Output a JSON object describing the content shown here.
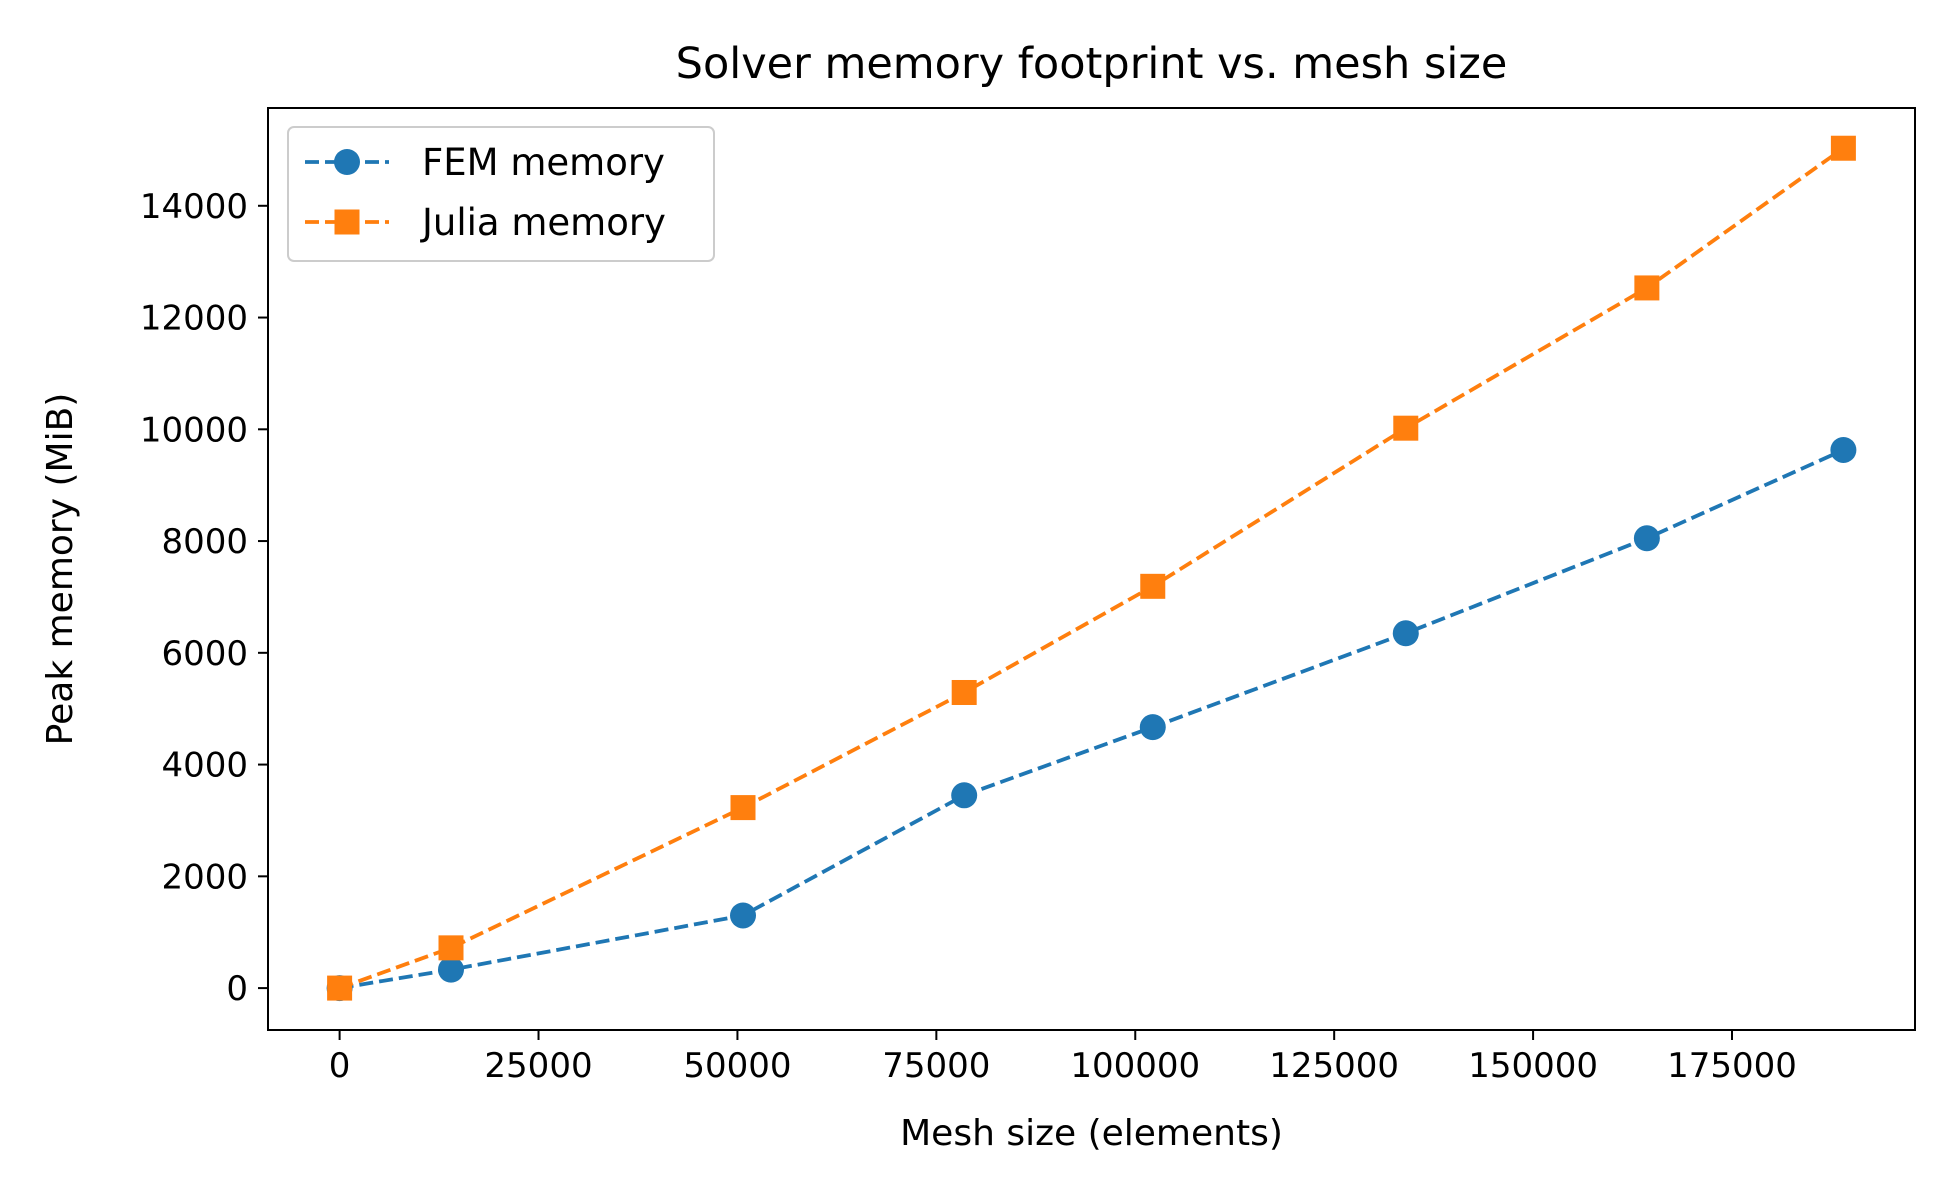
{
  "chart_data": {
    "type": "line",
    "title": "Solver memory footprint vs. mesh size",
    "xlabel": "Mesh size (elements)",
    "ylabel": "Peak memory (MiB)",
    "xlim": [
      -9000,
      198000
    ],
    "ylim": [
      -750,
      15750
    ],
    "xticks": [
      0,
      25000,
      50000,
      75000,
      100000,
      125000,
      150000,
      175000
    ],
    "yticks": [
      0,
      2000,
      4000,
      6000,
      8000,
      10000,
      12000,
      14000
    ],
    "grid": false,
    "legend_position": "top-left",
    "x": [
      0,
      14000,
      50700,
      78500,
      102200,
      134000,
      164300,
      189000
    ],
    "series": [
      {
        "name": "FEM memory",
        "color": "#1f77b4",
        "marker": "circle",
        "line_style": "dashed",
        "values": [
          0,
          330,
          1300,
          3450,
          4670,
          6350,
          8050,
          9630
        ]
      },
      {
        "name": "Julia memory",
        "color": "#ff7f0e",
        "marker": "square",
        "line_style": "dashed",
        "values": [
          0,
          720,
          3230,
          5290,
          7190,
          10020,
          12530,
          15030
        ]
      }
    ]
  }
}
